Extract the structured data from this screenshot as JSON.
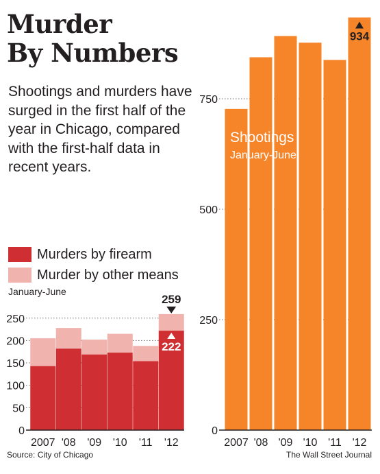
{
  "headline": {
    "line1": "Murder",
    "line2": "By Numbers"
  },
  "dek": "Shootings and murders have surged in the first half of the year in Chicago, compared with the first-half data in recent years.",
  "source": "Source: City of Chicago",
  "credit": "The Wall Street Journal",
  "colors": {
    "firearm": "#cf2e32",
    "other": "#f0b3ad",
    "shootings": "#f68428",
    "text": "#231f20",
    "annotation_box": "#231f20",
    "callout_arrow": "#ffffff"
  },
  "chart_data": [
    {
      "type": "bar",
      "stacked": true,
      "categories": [
        "2007",
        "'08",
        "'09",
        "'10",
        "'11",
        "'12"
      ],
      "series": [
        {
          "name": "Murders by firearm",
          "values": [
            143,
            182,
            169,
            173,
            154,
            222
          ],
          "color": "#cf2e32"
        },
        {
          "name": "Murder by other means",
          "values": [
            62,
            46,
            33,
            42,
            34,
            37
          ],
          "color": "#f0b3ad"
        }
      ],
      "totals": [
        205,
        228,
        202,
        215,
        188,
        259
      ],
      "legend_subtitle": "January-June",
      "yticks": [
        0,
        50,
        100,
        150,
        200,
        250
      ],
      "ylim": [
        0,
        259
      ],
      "annotations": [
        {
          "category": "'12",
          "value": 259,
          "label": "259",
          "position": "above",
          "marker": "down-arrow"
        },
        {
          "category": "'12",
          "value": 222,
          "label": "222",
          "position": "inside",
          "marker": "up-arrow"
        }
      ],
      "grid": "dotted"
    },
    {
      "type": "bar",
      "categories": [
        "2007",
        "'08",
        "'09",
        "'10",
        "'11",
        "'12"
      ],
      "series": [
        {
          "name": "Shootings",
          "values": [
            727,
            844,
            892,
            877,
            838,
            934
          ],
          "color": "#f68428"
        }
      ],
      "title": "Shootings",
      "subtitle": "January-June",
      "yticks": [
        0,
        250,
        500,
        750
      ],
      "ylim": [
        0,
        934
      ],
      "annotations": [
        {
          "category": "'12",
          "value": 934,
          "label": "934",
          "marker": "up-arrow"
        }
      ],
      "grid": "dotted"
    }
  ]
}
